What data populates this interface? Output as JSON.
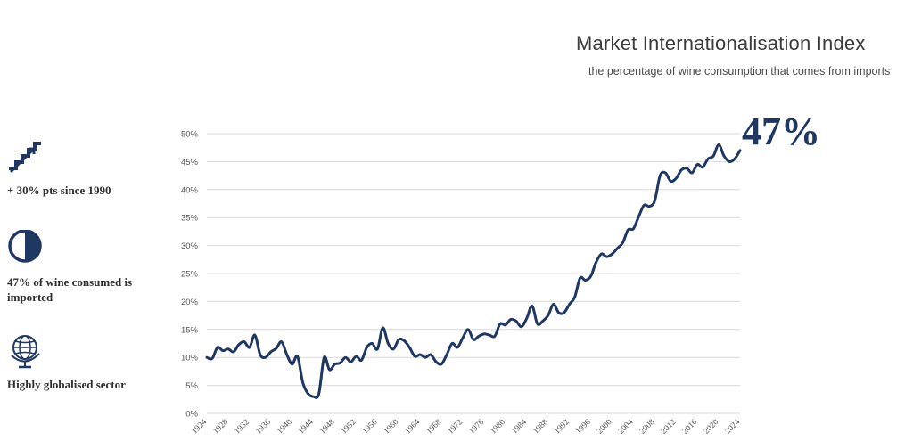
{
  "header": {
    "title": "Market Internationalisation Index",
    "subtitle": "the percentage of wine consumption that comes from imports",
    "highlight": "47%"
  },
  "stats": [
    {
      "icon": "trending-stairs-icon",
      "text": "+ 30% pts since 1990"
    },
    {
      "icon": "half-circle-icon",
      "text": "47% of wine consumed is imported"
    },
    {
      "icon": "globe-icon",
      "text": "Highly globalised sector"
    }
  ],
  "colors": {
    "line": "#1f3763",
    "grid": "#d9d9d9",
    "text": "#3b3b3b"
  },
  "chart_data": {
    "type": "line",
    "title": "Market Internationalisation Index",
    "subtitle": "the percentage of wine consumption that comes from imports",
    "xlabel": "",
    "ylabel": "",
    "ylim": [
      0,
      50
    ],
    "y_ticks": [
      "0%",
      "5%",
      "10%",
      "15%",
      "20%",
      "25%",
      "30%",
      "35%",
      "40%",
      "45%",
      "50%"
    ],
    "x_ticks": [
      "1924",
      "1928",
      "1932",
      "1936",
      "1940",
      "1944",
      "1948",
      "1952",
      "1956",
      "1960",
      "1964",
      "1968",
      "1972",
      "1976",
      "1980",
      "1984",
      "1988",
      "1992",
      "1996",
      "2000",
      "2004",
      "2008",
      "2012",
      "2016",
      "2020",
      "2024"
    ],
    "grid": true,
    "series": [
      {
        "x": [
          1924,
          1925,
          1926,
          1927,
          1928,
          1929,
          1930,
          1931,
          1932,
          1933,
          1934,
          1935,
          1936,
          1937,
          1938,
          1939,
          1940,
          1941,
          1942,
          1943,
          1944,
          1945,
          1946,
          1947,
          1948,
          1949,
          1950,
          1951,
          1952,
          1953,
          1954,
          1955,
          1956,
          1957,
          1958,
          1959,
          1960,
          1961,
          1962,
          1963,
          1964,
          1965,
          1966,
          1967,
          1968,
          1969,
          1970,
          1971,
          1972,
          1973,
          1974,
          1975,
          1976,
          1977,
          1978,
          1979,
          1980,
          1981,
          1982,
          1983,
          1984,
          1985,
          1986,
          1987,
          1988,
          1989,
          1990,
          1991,
          1992,
          1993,
          1994,
          1995,
          1996,
          1997,
          1998,
          1999,
          2000,
          2001,
          2002,
          2003,
          2004,
          2005,
          2006,
          2007,
          2008,
          2009,
          2010,
          2011,
          2012,
          2013,
          2014,
          2015,
          2016,
          2017,
          2018,
          2019,
          2020,
          2021,
          2022,
          2023,
          2024
        ],
        "values": [
          10,
          9.8,
          11.8,
          11.2,
          11.5,
          11,
          12.3,
          12.8,
          11.8,
          14,
          10.5,
          10,
          11,
          11.6,
          12.8,
          10.5,
          8.8,
          10.2,
          5.5,
          3.5,
          3,
          3.5,
          10,
          7.8,
          8.8,
          9,
          10,
          9.2,
          10.2,
          9.5,
          11.8,
          12.5,
          11.5,
          15.3,
          12.5,
          11.5,
          13.2,
          13,
          11.8,
          10.2,
          10.5,
          10,
          10.5,
          9.2,
          8.8,
          10.5,
          12.5,
          11.8,
          13.5,
          15,
          13.2,
          13.8,
          14.2,
          14,
          13.8,
          16,
          15.8,
          16.8,
          16.5,
          15.5,
          17,
          19.2,
          16,
          16.5,
          17.5,
          19.5,
          18,
          18,
          19.5,
          20.8,
          24.2,
          23.8,
          24.5,
          27,
          28.5,
          28,
          28.5,
          29.5,
          30.5,
          32.8,
          33,
          35.2,
          37.2,
          37,
          38,
          42.5,
          43,
          41.5,
          42,
          43.5,
          43.8,
          43,
          44.5,
          44,
          45.5,
          46,
          48,
          46,
          45,
          45.5,
          47
        ]
      }
    ]
  }
}
